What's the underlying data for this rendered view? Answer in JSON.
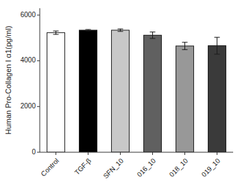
{
  "chart_data": {
    "type": "bar",
    "categories": [
      "Control",
      "TGF-β",
      "SFN_10",
      "016_10",
      "018_10",
      "019_10"
    ],
    "values": [
      5230,
      5340,
      5340,
      5120,
      4650,
      4660
    ],
    "errors": [
      75,
      30,
      55,
      140,
      160,
      370
    ],
    "colors": [
      "#ffffff",
      "#000000",
      "#c8c8c8",
      "#606060",
      "#989898",
      "#3a3a3a"
    ],
    "ylabel": "Human Pro-Collagen I α1(pg/ml)",
    "ylim": [
      0,
      6300
    ],
    "yticks": [
      0,
      2000,
      4000,
      6000
    ],
    "grid": false
  }
}
